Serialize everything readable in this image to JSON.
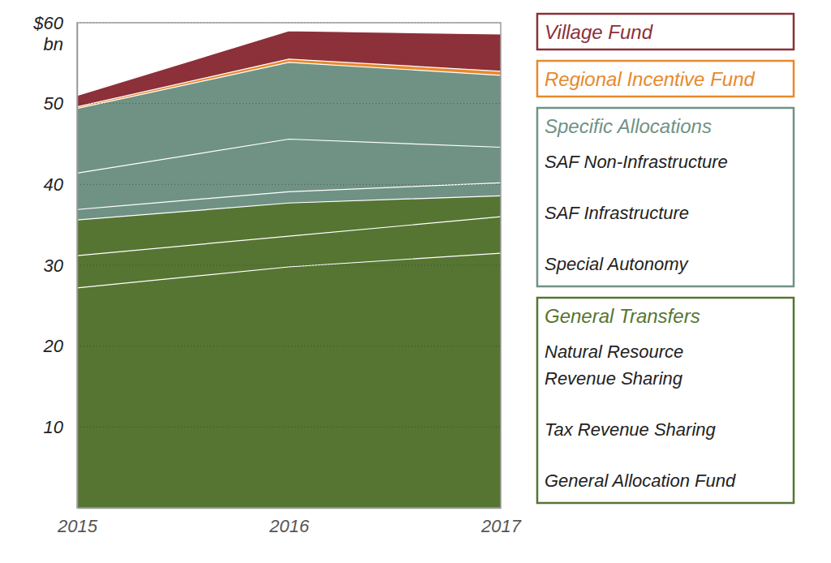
{
  "chart_data": {
    "type": "area",
    "stacked": true,
    "grid": true,
    "x": [
      2015,
      2016,
      2017
    ],
    "xlim": [
      2015,
      2017
    ],
    "xticks": [
      2015,
      2016,
      2017
    ],
    "ylim": [
      0,
      60
    ],
    "yticks": [
      10,
      20,
      30,
      40,
      50,
      {
        "value": 60,
        "label": "$60"
      }
    ],
    "ylabel": "bn",
    "series": [
      {
        "name": "Village Fund",
        "color": "#8c3039",
        "values": [
          1.4,
          3.5,
          4.6
        ]
      },
      {
        "name": "Regional Incentive Fund",
        "color": "#e8892c",
        "values": [
          0.2,
          0.4,
          0.5
        ]
      },
      {
        "name": "Specific Allocations",
        "color": "#6f9285",
        "series": [
          {
            "name": "SAF Non-Infrastructure",
            "values": [
              8.0,
              9.5,
              8.9
            ]
          },
          {
            "name": "SAF Infrastructure",
            "values": [
              4.5,
              6.5,
              4.4
            ]
          },
          {
            "name": "Special Autonomy",
            "values": [
              1.3,
              1.4,
              1.6
            ]
          }
        ]
      },
      {
        "name": "General Transfers",
        "color": "#567532",
        "series": [
          {
            "name": "Natural Resource Revenue Sharing",
            "values": [
              4.4,
              4.1,
              2.6
            ]
          },
          {
            "name": "Tax Revenue Sharing",
            "values": [
              4.0,
              3.8,
              4.5
            ]
          },
          {
            "name": "General Allocation Fund",
            "values": [
              27.2,
              29.8,
              31.5
            ]
          }
        ]
      }
    ]
  }
}
